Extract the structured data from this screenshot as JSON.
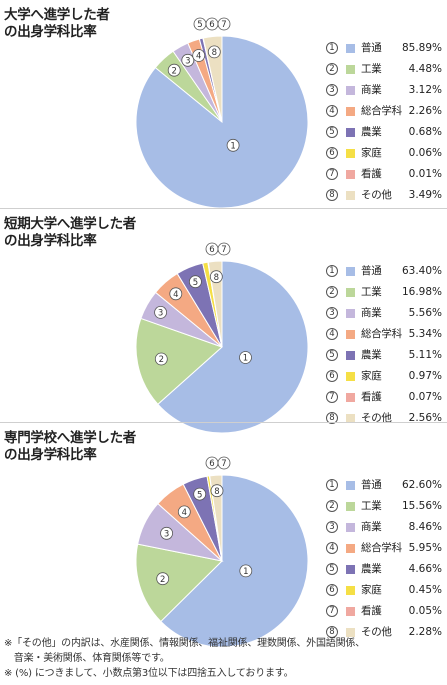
{
  "chart_data": [
    {
      "type": "pie",
      "title": "大学へ進学した者\nの出身学科比率",
      "categories": [
        "普通",
        "工業",
        "商業",
        "総合学科",
        "農業",
        "家庭",
        "看護",
        "その他"
      ],
      "values": [
        85.89,
        4.48,
        3.12,
        2.26,
        0.68,
        0.06,
        0.01,
        3.49
      ],
      "value_labels": [
        "85.89%",
        "4.48%",
        "3.12%",
        "2.26%",
        "0.68%",
        "0.06%",
        "0.01%",
        "3.49%"
      ],
      "unit": "%",
      "legend_position": "right"
    },
    {
      "type": "pie",
      "title": "短期大学へ進学した者\nの出身学科比率",
      "categories": [
        "普通",
        "工業",
        "商業",
        "総合学科",
        "農業",
        "家庭",
        "看護",
        "その他"
      ],
      "values": [
        63.4,
        16.98,
        5.56,
        5.34,
        5.11,
        0.97,
        0.07,
        2.56
      ],
      "value_labels": [
        "63.40%",
        "16.98%",
        "5.56%",
        "5.34%",
        "5.11%",
        "0.97%",
        "0.07%",
        "2.56%"
      ],
      "unit": "%",
      "legend_position": "right"
    },
    {
      "type": "pie",
      "title": "専門学校へ進学した者\nの出身学科比率",
      "categories": [
        "普通",
        "工業",
        "商業",
        "総合学科",
        "農業",
        "家庭",
        "看護",
        "その他"
      ],
      "values": [
        62.6,
        15.56,
        8.46,
        5.95,
        4.66,
        0.45,
        0.05,
        2.28
      ],
      "value_labels": [
        "62.60%",
        "15.56%",
        "8.46%",
        "5.95%",
        "4.66%",
        "0.45%",
        "0.05%",
        "2.28%"
      ],
      "unit": "%",
      "legend_position": "right"
    }
  ],
  "slice_numbers": [
    "①",
    "②",
    "③",
    "④",
    "⑤",
    "⑥",
    "⑦",
    "⑧"
  ],
  "colors": [
    "#a7bde6",
    "#bcd79a",
    "#c4b7dc",
    "#f4a983",
    "#7d73b4",
    "#f5df45",
    "#f0a8a0",
    "#ece0c2"
  ],
  "notes": [
    "※「その他」の内訳は、水産関係、情報関係、福祉関係、理数関係、外国語関係、",
    "　音楽・美術関係、体育関係等です。",
    "※ (%) につきまして、小数点第3位以下は四捨五入しております。"
  ]
}
